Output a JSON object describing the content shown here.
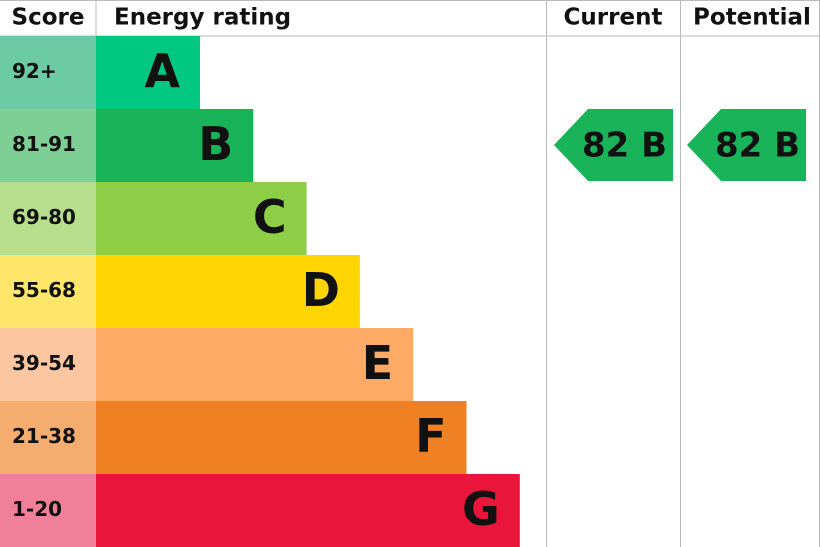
{
  "header": {
    "score": "Score",
    "rating": "Energy rating",
    "current": "Current",
    "potential": "Potential"
  },
  "bands": [
    {
      "score": "92+",
      "letter": "A",
      "color": "#00c781",
      "score_color": "#6ccaa4"
    },
    {
      "score": "81-91",
      "letter": "B",
      "color": "#19b459",
      "score_color": "#7dcf96"
    },
    {
      "score": "69-80",
      "letter": "C",
      "color": "#8dce46",
      "score_color": "#b7de8c"
    },
    {
      "score": "55-68",
      "letter": "D",
      "color": "#ffd500",
      "score_color": "#fde66a"
    },
    {
      "score": "39-54",
      "letter": "E",
      "color": "#fcaa65",
      "score_color": "#fcc6a0"
    },
    {
      "score": "21-38",
      "letter": "F",
      "color": "#ef8023",
      "score_color": "#f4ad6e"
    },
    {
      "score": "1-20",
      "letter": "G",
      "color": "#e9153b",
      "score_color": "#f08099"
    }
  ],
  "current": "82 B",
  "potential": "82 B"
}
